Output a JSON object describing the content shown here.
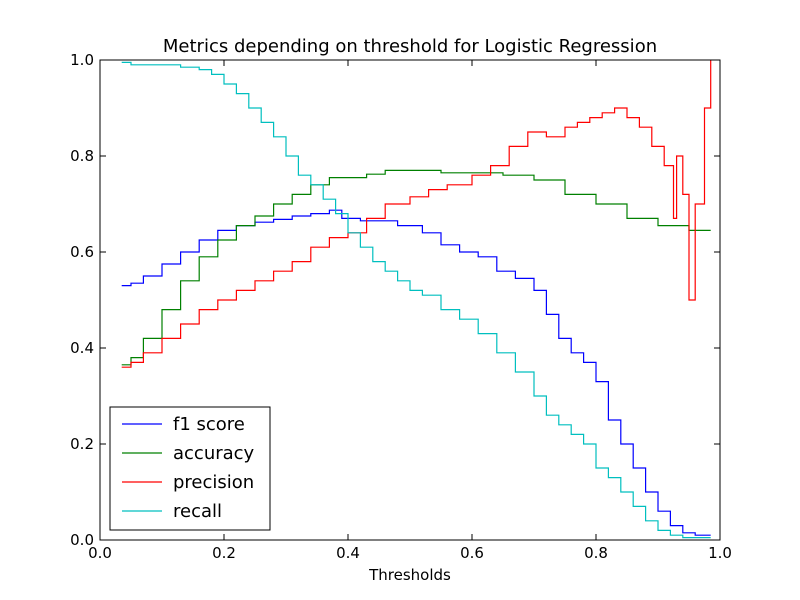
{
  "chart_data": {
    "type": "line",
    "title": "Metrics depending on threshold for Logistic Regression",
    "xlabel": "Thresholds",
    "ylabel": "",
    "xlim": [
      0.0,
      1.0
    ],
    "ylim": [
      0.0,
      1.0
    ],
    "xticks": [
      "0.0",
      "0.2",
      "0.4",
      "0.6",
      "0.8",
      "1.0"
    ],
    "yticks": [
      "0.0",
      "0.2",
      "0.4",
      "0.6",
      "0.8",
      "1.0"
    ],
    "grid": false,
    "legend_position": "lower-left",
    "series": [
      {
        "name": "f1 score",
        "color": "#0000ff",
        "x": [
          0.035,
          0.05,
          0.07,
          0.1,
          0.13,
          0.16,
          0.19,
          0.22,
          0.25,
          0.28,
          0.31,
          0.34,
          0.37,
          0.39,
          0.42,
          0.45,
          0.48,
          0.52,
          0.55,
          0.58,
          0.61,
          0.64,
          0.67,
          0.7,
          0.72,
          0.74,
          0.76,
          0.78,
          0.8,
          0.82,
          0.84,
          0.86,
          0.88,
          0.9,
          0.92,
          0.94,
          0.96,
          0.985
        ],
        "values": [
          0.53,
          0.535,
          0.55,
          0.575,
          0.6,
          0.625,
          0.645,
          0.655,
          0.662,
          0.668,
          0.675,
          0.68,
          0.687,
          0.67,
          0.665,
          0.665,
          0.655,
          0.64,
          0.615,
          0.6,
          0.59,
          0.56,
          0.545,
          0.52,
          0.47,
          0.42,
          0.39,
          0.37,
          0.33,
          0.25,
          0.2,
          0.15,
          0.1,
          0.06,
          0.03,
          0.015,
          0.01,
          0.01
        ]
      },
      {
        "name": "accuracy",
        "color": "#008000",
        "x": [
          0.035,
          0.05,
          0.07,
          0.1,
          0.13,
          0.16,
          0.19,
          0.22,
          0.25,
          0.28,
          0.31,
          0.34,
          0.37,
          0.4,
          0.43,
          0.46,
          0.5,
          0.55,
          0.6,
          0.65,
          0.7,
          0.75,
          0.8,
          0.85,
          0.9,
          0.95,
          0.985
        ],
        "values": [
          0.365,
          0.38,
          0.42,
          0.48,
          0.54,
          0.59,
          0.625,
          0.655,
          0.675,
          0.7,
          0.72,
          0.74,
          0.755,
          0.755,
          0.762,
          0.77,
          0.77,
          0.765,
          0.765,
          0.76,
          0.75,
          0.72,
          0.7,
          0.67,
          0.655,
          0.645,
          0.645
        ]
      },
      {
        "name": "precision",
        "color": "#ff0000",
        "x": [
          0.035,
          0.05,
          0.07,
          0.1,
          0.13,
          0.16,
          0.19,
          0.22,
          0.25,
          0.28,
          0.31,
          0.34,
          0.37,
          0.4,
          0.43,
          0.46,
          0.5,
          0.53,
          0.56,
          0.6,
          0.63,
          0.66,
          0.69,
          0.72,
          0.75,
          0.77,
          0.79,
          0.81,
          0.83,
          0.85,
          0.87,
          0.89,
          0.91,
          0.925,
          0.93,
          0.94,
          0.95,
          0.96,
          0.975,
          0.985
        ],
        "values": [
          0.36,
          0.37,
          0.39,
          0.42,
          0.45,
          0.48,
          0.5,
          0.52,
          0.54,
          0.56,
          0.58,
          0.61,
          0.63,
          0.64,
          0.67,
          0.7,
          0.715,
          0.73,
          0.74,
          0.76,
          0.78,
          0.82,
          0.85,
          0.84,
          0.86,
          0.87,
          0.88,
          0.89,
          0.9,
          0.88,
          0.86,
          0.82,
          0.78,
          0.67,
          0.8,
          0.72,
          0.5,
          0.7,
          0.9,
          1.0
        ]
      },
      {
        "name": "recall",
        "color": "#00bfbf",
        "x": [
          0.035,
          0.05,
          0.07,
          0.1,
          0.13,
          0.16,
          0.18,
          0.2,
          0.22,
          0.24,
          0.26,
          0.28,
          0.3,
          0.32,
          0.34,
          0.36,
          0.38,
          0.4,
          0.42,
          0.44,
          0.46,
          0.48,
          0.5,
          0.52,
          0.55,
          0.58,
          0.61,
          0.64,
          0.67,
          0.7,
          0.72,
          0.74,
          0.76,
          0.78,
          0.8,
          0.82,
          0.84,
          0.86,
          0.88,
          0.9,
          0.92,
          0.94,
          0.96,
          0.985
        ],
        "values": [
          0.995,
          0.99,
          0.99,
          0.99,
          0.985,
          0.98,
          0.97,
          0.95,
          0.93,
          0.9,
          0.87,
          0.84,
          0.8,
          0.76,
          0.74,
          0.71,
          0.68,
          0.64,
          0.61,
          0.58,
          0.56,
          0.54,
          0.52,
          0.51,
          0.48,
          0.46,
          0.43,
          0.39,
          0.35,
          0.3,
          0.26,
          0.24,
          0.22,
          0.2,
          0.15,
          0.13,
          0.1,
          0.07,
          0.04,
          0.02,
          0.01,
          0.005,
          0.005,
          0.005
        ]
      }
    ]
  }
}
